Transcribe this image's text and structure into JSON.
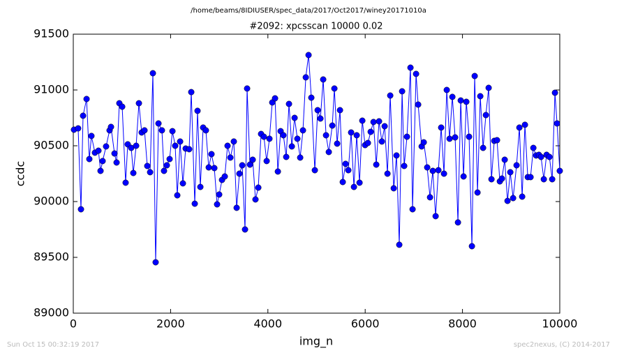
{
  "chart_data": {
    "type": "line",
    "suptitle": "/home/beams/8IDIUSER/spec_data/2017/Oct2017/winey20171010a",
    "title": "#2092: xpcsscan 10000 0.02",
    "x_label": "img_n",
    "y_label": "ccdc",
    "footer_left": "Sun Oct 15 00:32:19 2017",
    "footer_right": "spec2nexus, (C) 2014-2017",
    "xlim": [
      0,
      10000
    ],
    "xticks": [
      0,
      2000,
      4000,
      6000,
      8000,
      10000
    ],
    "ylim": [
      89000,
      91500
    ],
    "yticks": [
      89000,
      89500,
      90000,
      90500,
      91000,
      91500
    ],
    "grid": false,
    "x": [
      14,
      100,
      158,
      201,
      273,
      330,
      373,
      445,
      517,
      560,
      603,
      674,
      746,
      775,
      847,
      890,
      947,
      1005,
      1076,
      1119,
      1191,
      1234,
      1292,
      1349,
      1406,
      1464,
      1521,
      1579,
      1636,
      1693,
      1751,
      1822,
      1865,
      1923,
      1980,
      2038,
      2095,
      2138,
      2196,
      2253,
      2310,
      2382,
      2425,
      2497,
      2554,
      2612,
      2669,
      2726,
      2784,
      2841,
      2899,
      2956,
      2999,
      3057,
      3114,
      3171,
      3229,
      3300,
      3358,
      3415,
      3473,
      3530,
      3573,
      3631,
      3688,
      3745,
      3803,
      3860,
      3918,
      3975,
      4032,
      4090,
      4147,
      4205,
      4262,
      4319,
      4377,
      4434,
      4492,
      4549,
      4606,
      4664,
      4721,
      4779,
      4836,
      4893,
      4965,
      5023,
      5080,
      5137,
      5195,
      5252,
      5324,
      5367,
      5424,
      5482,
      5539,
      5597,
      5654,
      5711,
      5769,
      5826,
      5884,
      5941,
      5998,
      6056,
      6113,
      6171,
      6228,
      6285,
      6343,
      6400,
      6458,
      6515,
      6587,
      6644,
      6701,
      6759,
      6802,
      6859,
      6931,
      6974,
      7046,
      7089,
      7161,
      7204,
      7275,
      7333,
      7390,
      7448,
      7505,
      7562,
      7620,
      7677,
      7735,
      7792,
      7849,
      7907,
      7964,
      8022,
      8079,
      8136,
      8194,
      8251,
      8309,
      8366,
      8424,
      8481,
      8538,
      8596,
      8653,
      8710,
      8768,
      8811,
      8868,
      8926,
      8983,
      9041,
      9112,
      9170,
      9227,
      9284,
      9342,
      9399,
      9457,
      9514,
      9571,
      9615,
      9672,
      9729,
      9787,
      9844,
      9901,
      9944,
      10000
    ],
    "series": [
      {
        "name": "ccdc",
        "color": "#0000ff",
        "values": [
          90644,
          90656,
          89931,
          90769,
          90919,
          90381,
          90588,
          90438,
          90456,
          90275,
          90363,
          90494,
          90638,
          90669,
          90431,
          90350,
          90881,
          90850,
          90169,
          90513,
          90481,
          90256,
          90500,
          90881,
          90619,
          90638,
          90319,
          90263,
          91150,
          89456,
          90700,
          90638,
          90275,
          90325,
          90381,
          90631,
          90500,
          90056,
          90538,
          90163,
          90475,
          90469,
          90981,
          89981,
          90813,
          90131,
          90663,
          90638,
          90306,
          90425,
          90300,
          89975,
          90063,
          90194,
          90225,
          90500,
          90394,
          90538,
          89944,
          90250,
          90325,
          89750,
          91013,
          90331,
          90375,
          90019,
          90125,
          90606,
          90581,
          90363,
          90563,
          90888,
          90925,
          90269,
          90631,
          90594,
          90400,
          90875,
          90494,
          90750,
          90563,
          90394,
          90638,
          91113,
          91313,
          90931,
          90281,
          90819,
          90744,
          91094,
          90594,
          90444,
          90681,
          91013,
          90519,
          90819,
          90175,
          90338,
          90281,
          90619,
          90131,
          90594,
          90169,
          90725,
          90506,
          90525,
          90625,
          90713,
          90331,
          90719,
          90538,
          90675,
          90250,
          90950,
          90119,
          90413,
          89613,
          90988,
          90319,
          90581,
          91200,
          89931,
          91144,
          90869,
          90494,
          90531,
          90306,
          90038,
          90275,
          89869,
          90281,
          90663,
          90250,
          91000,
          90563,
          90938,
          90575,
          89813,
          90906,
          90225,
          90894,
          90581,
          89600,
          91125,
          90081,
          90944,
          90481,
          90775,
          91019,
          90200,
          90544,
          90550,
          90181,
          90206,
          90375,
          90006,
          90263,
          90031,
          90325,
          90663,
          90044,
          90688,
          90219,
          90219,
          90481,
          90413,
          90419,
          90400,
          90200,
          90419,
          90400,
          90200,
          90975,
          90700,
          90275
        ]
      }
    ]
  }
}
